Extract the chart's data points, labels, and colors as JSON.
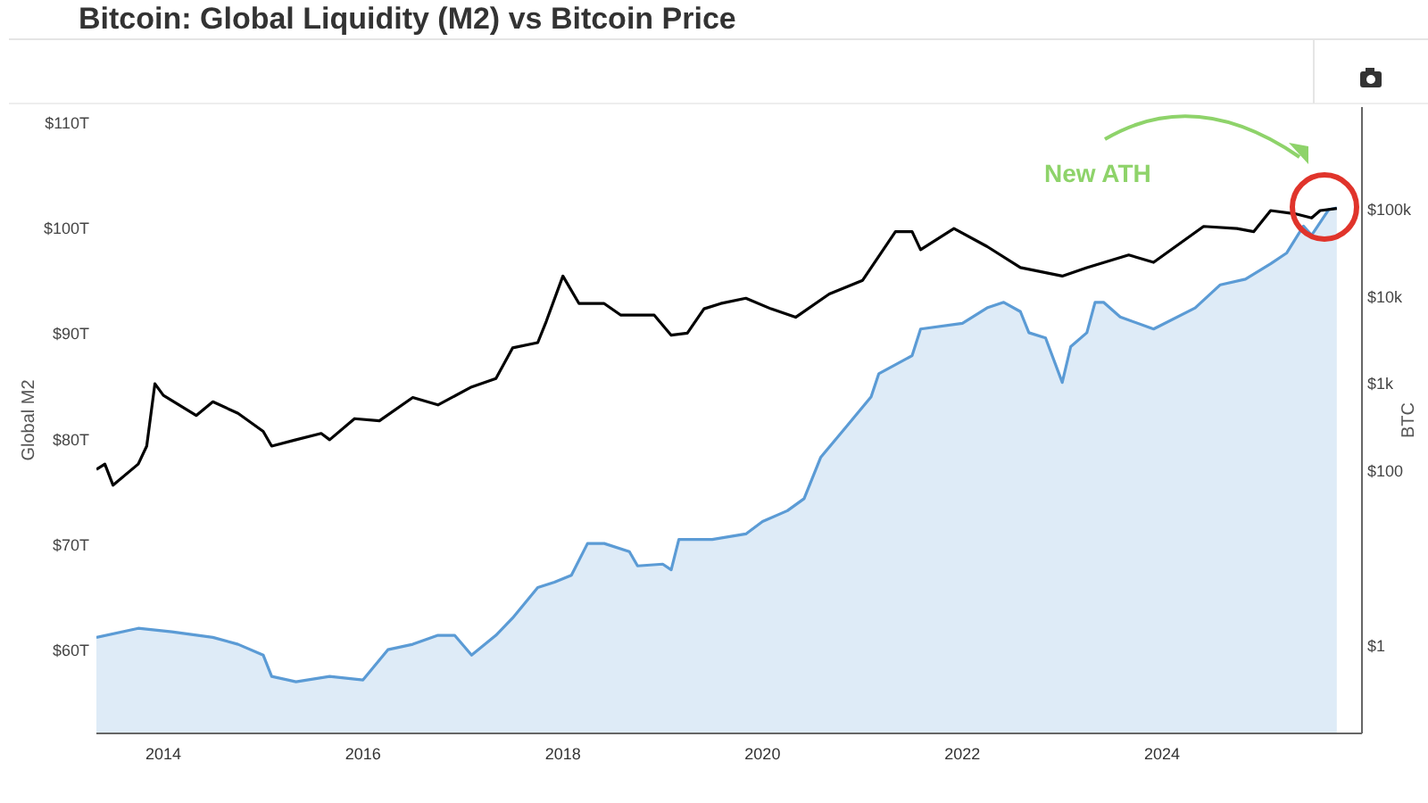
{
  "chart_data": {
    "type": "line",
    "title": "Bitcoin: Global Liquidity (M2) vs Bitcoin Price",
    "ylabel": "Global M2",
    "y2label": "BTC",
    "annotations": [
      "New ATH"
    ],
    "xlim": [
      "2013-05",
      "2026-01"
    ],
    "xticks": [
      "2014",
      "2016",
      "2018",
      "2020",
      "2022",
      "2024"
    ],
    "ylim": [
      52.2,
      111.5
    ],
    "yticks": [
      {
        "value": 60,
        "label": "$60T"
      },
      {
        "value": 70,
        "label": "$70T"
      },
      {
        "value": 80,
        "label": "$80T"
      },
      {
        "value": 90,
        "label": "$90T"
      },
      {
        "value": 100,
        "label": "$100T"
      },
      {
        "value": 110,
        "label": "$110T"
      }
    ],
    "y2lim": [
      0.1,
      1500000
    ],
    "y2ticks": [
      {
        "value": 1,
        "label": "$1"
      },
      {
        "value": 100,
        "label": "$100"
      },
      {
        "value": 1000,
        "label": "$1k"
      },
      {
        "value": 10000,
        "label": "$10k"
      },
      {
        "value": 100000,
        "label": "$100k"
      }
    ],
    "log": "y2",
    "grid": false,
    "legend": false,
    "series": [
      {
        "type": "area",
        "axis": "y2",
        "color": "#5b9bd5",
        "x": [
          "2013-05",
          "2013-10",
          "2014-02",
          "2014-07",
          "2014-10",
          "2015-01",
          "2015-02",
          "2015-05",
          "2015-09",
          "2016-01",
          "2016-04",
          "2016-07",
          "2016-10",
          "2016-12",
          "2017-02",
          "2017-05",
          "2017-07",
          "2017-10",
          "2017-12",
          "2018-02",
          "2018-04",
          "2018-06",
          "2018-09",
          "2018-10",
          "2019-01",
          "2019-02",
          "2019-03",
          "2019-07",
          "2019-11",
          "2020-01",
          "2020-04",
          "2020-06",
          "2020-08",
          "2020-11",
          "2021-02",
          "2021-03",
          "2021-07",
          "2021-08",
          "2022-01",
          "2022-04",
          "2022-06",
          "2022-08",
          "2022-09",
          "2022-11",
          "2023-01",
          "2023-02",
          "2023-04",
          "2023-05",
          "2023-06",
          "2023-08",
          "2023-12",
          "2024-05",
          "2024-08",
          "2024-11",
          "2025-02",
          "2025-04",
          "2025-06",
          "2025-07",
          "2025-09",
          "2025-10"
        ],
        "values": [
          1.26,
          1.6,
          1.46,
          1.26,
          1.05,
          0.79,
          0.45,
          0.39,
          0.45,
          0.41,
          0.91,
          1.05,
          1.33,
          1.33,
          0.79,
          1.33,
          2.1,
          4.7,
          5.4,
          6.5,
          15,
          15,
          12.1,
          8.3,
          8.7,
          7.5,
          16.7,
          16.7,
          19.3,
          26.8,
          35.6,
          49,
          146,
          323,
          720,
          1320,
          2130,
          4300,
          5000,
          7500,
          8700,
          6800,
          3900,
          3400,
          1050,
          2700,
          3900,
          8700,
          8700,
          5900,
          4300,
          7500,
          13800,
          16000,
          24000,
          32000,
          65000,
          51000,
          100000,
          105000
        ]
      },
      {
        "axis": "y",
        "color": "#000000",
        "x": [
          "2013-05",
          "2013-06",
          "2013-07",
          "2013-10",
          "2013-11",
          "2013-12",
          "2014-01",
          "2014-05",
          "2014-07",
          "2014-10",
          "2015-01",
          "2015-02",
          "2015-05",
          "2015-08",
          "2015-09",
          "2015-12",
          "2016-03",
          "2016-07",
          "2016-10",
          "2017-02",
          "2017-05",
          "2017-07",
          "2017-10",
          "2017-11",
          "2018-01",
          "2018-03",
          "2018-06",
          "2018-08",
          "2018-12",
          "2019-02",
          "2019-04",
          "2019-06",
          "2019-08",
          "2019-11",
          "2020-02",
          "2020-05",
          "2020-09",
          "2021-01",
          "2021-05",
          "2021-07",
          "2021-08",
          "2021-12",
          "2022-04",
          "2022-08",
          "2023-01",
          "2023-04",
          "2023-09",
          "2023-12",
          "2024-06",
          "2024-10",
          "2024-12",
          "2025-02",
          "2025-05",
          "2025-07",
          "2025-08",
          "2025-10"
        ],
        "values": [
          77.2,
          77.7,
          75.7,
          77.7,
          79.4,
          85.3,
          84.2,
          82.3,
          83.6,
          82.5,
          80.8,
          79.4,
          80,
          80.6,
          80,
          82,
          81.8,
          84,
          83.3,
          85,
          85.8,
          88.7,
          89.2,
          91.2,
          95.5,
          92.9,
          92.9,
          91.8,
          91.8,
          89.9,
          90.1,
          92.4,
          92.9,
          93.4,
          92.4,
          91.6,
          93.8,
          95.1,
          99.7,
          99.7,
          98,
          100,
          98.3,
          96.3,
          95.5,
          96.3,
          97.5,
          96.8,
          100.2,
          100,
          99.7,
          101.7,
          101.4,
          101,
          101.7,
          101.9
        ]
      }
    ]
  }
}
